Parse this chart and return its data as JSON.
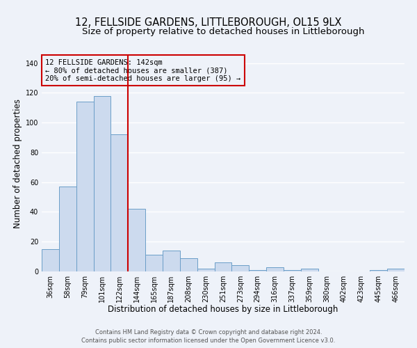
{
  "title": "12, FELLSIDE GARDENS, LITTLEBOROUGH, OL15 9LX",
  "subtitle": "Size of property relative to detached houses in Littleborough",
  "xlabel": "Distribution of detached houses by size in Littleborough",
  "ylabel": "Number of detached properties",
  "bar_labels": [
    "36sqm",
    "58sqm",
    "79sqm",
    "101sqm",
    "122sqm",
    "144sqm",
    "165sqm",
    "187sqm",
    "208sqm",
    "230sqm",
    "251sqm",
    "273sqm",
    "294sqm",
    "316sqm",
    "337sqm",
    "359sqm",
    "380sqm",
    "402sqm",
    "423sqm",
    "445sqm",
    "466sqm"
  ],
  "bar_values": [
    15,
    57,
    114,
    118,
    92,
    42,
    11,
    14,
    9,
    2,
    6,
    4,
    1,
    3,
    1,
    2,
    0,
    0,
    0,
    1,
    2
  ],
  "bar_color": "#ccdaee",
  "bar_edge_color": "#6b9ec8",
  "vline_x_index": 5,
  "vline_color": "#cc0000",
  "annotation_title": "12 FELLSIDE GARDENS: 142sqm",
  "annotation_line1": "← 80% of detached houses are smaller (387)",
  "annotation_line2": "20% of semi-detached houses are larger (95) →",
  "annotation_box_edge": "#cc0000",
  "ylim": [
    0,
    145
  ],
  "yticks": [
    0,
    20,
    40,
    60,
    80,
    100,
    120,
    140
  ],
  "footer_line1": "Contains HM Land Registry data © Crown copyright and database right 2024.",
  "footer_line2": "Contains public sector information licensed under the Open Government Licence v3.0.",
  "bg_color": "#eef2f9",
  "grid_color": "#ffffff",
  "title_fontsize": 10.5,
  "subtitle_fontsize": 9.5,
  "axis_label_fontsize": 8.5,
  "tick_fontsize": 7,
  "annotation_fontsize": 7.5,
  "footer_fontsize": 6
}
